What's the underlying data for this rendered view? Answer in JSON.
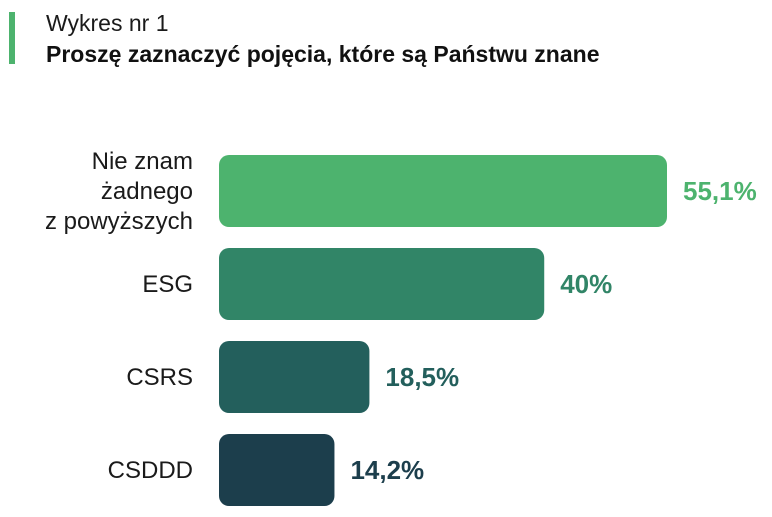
{
  "header": {
    "subtitle": "Wykres nr 1",
    "title": "Proszę zaznaczyć pojęcia, które są Państwu znane"
  },
  "colors": {
    "accent": "#4db36e",
    "bars": [
      "#4db36e",
      "#318567",
      "#235f5c",
      "#1c3e4c"
    ]
  },
  "chart_data": {
    "type": "bar",
    "orientation": "horizontal",
    "title": "Proszę zaznaczyć pojęcia, które są Państwu znane",
    "categories": [
      [
        "Nie znam",
        "żadnego",
        "z powyższych"
      ],
      [
        "ESG"
      ],
      [
        "CSRS"
      ],
      [
        "CSDDD"
      ]
    ],
    "values": [
      55.1,
      40,
      18.5,
      14.2
    ],
    "value_labels": [
      "55,1%",
      "40%",
      "18,5%",
      "14,2%"
    ],
    "xlim": [
      0,
      55.1
    ],
    "grid": false,
    "legend": "none"
  }
}
